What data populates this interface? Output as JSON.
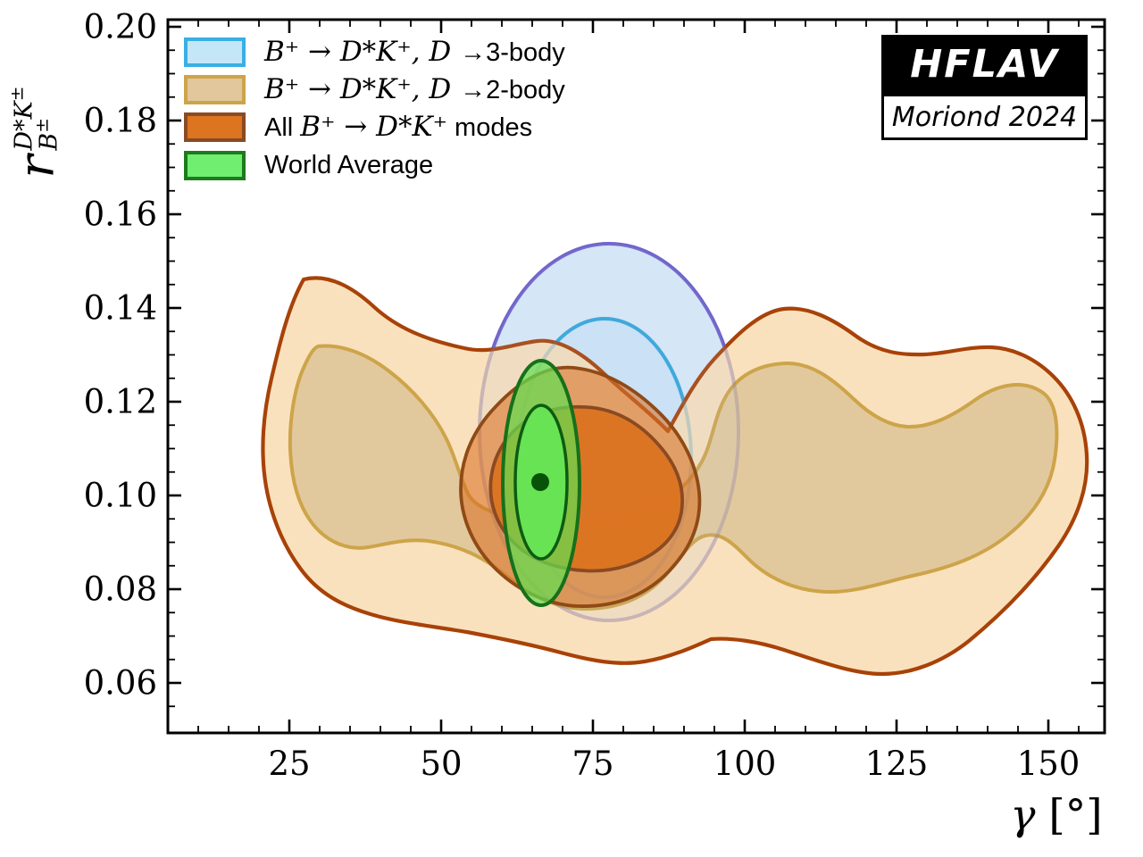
{
  "badge": {
    "line1": "HFLAV",
    "line2": "Moriond 2024",
    "bg": "#000000",
    "fg": "#ffffff"
  },
  "legend": {
    "items": [
      {
        "pre": "",
        "math": "B⁺ → D*K⁺, D ",
        "post": "→3-body",
        "fill": "#c5e6f7",
        "border": "#3aafe4"
      },
      {
        "pre": "",
        "math": "B⁺ → D*K⁺, D ",
        "post": "→2-body",
        "fill": "#e2c79c",
        "border": "#cda44a"
      },
      {
        "pre": "All ",
        "math": "B⁺ → D*K⁺",
        "post": " modes",
        "fill": "#dc7420",
        "border": "#8a4a22"
      },
      {
        "pre": "World Average",
        "math": "",
        "post": "",
        "fill": "#6fee6f",
        "border": "#1e7a1e"
      }
    ]
  },
  "axes": {
    "xlabel_gamma": "γ",
    "xlabel_unit": " [°]",
    "ylabel_base": "r",
    "ylabel_sup_main": "D*K",
    "ylabel_sup_pm": "±",
    "ylabel_sub_main": "B",
    "ylabel_sub_pm": "±"
  },
  "chart_data": {
    "type": "contour",
    "xlabel": "gamma [deg]",
    "ylabel": "r_B(D*K+-)",
    "xlim": [
      5,
      159.3
    ],
    "ylim": [
      0.0495,
      0.2015
    ],
    "grid": false,
    "legend_position": "top-left",
    "x_ticks": [
      25,
      50,
      75,
      100,
      125,
      150
    ],
    "x_tick_labels": [
      "25",
      "50",
      "75",
      "100",
      "125",
      "150"
    ],
    "x_minor_step": 5,
    "y_ticks": [
      0.06,
      0.08,
      0.1,
      0.12,
      0.14,
      0.16,
      0.18,
      0.2
    ],
    "y_tick_labels": [
      "0.06",
      "0.08",
      "0.10",
      "0.12",
      "0.14",
      "0.16",
      "0.18",
      "0.20"
    ],
    "y_minor_step": 0.005,
    "annotations": [
      "HFLAV",
      "Moriond 2024"
    ],
    "series": [
      {
        "name": "B+ -> D*K+, D -> 3-body",
        "line_1sigma": "#2fabe1",
        "line_2sigma": "#6a5fd8",
        "fill_1sigma": "#cbe2f5",
        "fill_2sigma": "#d9e9f8",
        "region_1sigma": {
          "gamma_range": [
            62,
            90
          ],
          "r_range": [
            0.079,
            0.137
          ],
          "shape": "tall ellipse, lower part hidden"
        },
        "region_2sigma": {
          "gamma_range": [
            52,
            100
          ],
          "r_range": [
            0.074,
            0.153
          ],
          "apex": {
            "gamma": 76,
            "r": 0.153
          }
        }
      },
      {
        "name": "B+ -> D*K+, D -> 2-body",
        "line_1sigma": "#cda44a",
        "line_2sigma": "#a84208",
        "fill_1sigma": "#e2c79c",
        "fill_2sigma": "#fae0bc",
        "region_1sigma": {
          "lobes": [
            {
              "gamma_range": [
                25,
                54
              ],
              "r_range": [
                0.088,
                0.132
              ]
            },
            {
              "gamma_range": [
                93,
                151
              ],
              "r_range": [
                0.079,
                0.13
              ]
            }
          ],
          "note": "two lobes joined by a narrow neck near r ~ 0.078"
        },
        "region_2sigma": {
          "gamma_range": [
            21,
            156
          ],
          "r_range": [
            0.062,
            0.146
          ]
        }
      },
      {
        "name": "All B+ -> D*K+ modes",
        "line": "#8a4a22",
        "fill_1sigma": "#dc7420",
        "fill_2sigma": "#dd9b59",
        "region_1sigma": {
          "gamma_range": [
            58,
            90
          ],
          "r_range": [
            0.084,
            0.119
          ]
        },
        "region_2sigma": {
          "gamma_range": [
            53,
            93
          ],
          "r_range": [
            0.076,
            0.127
          ]
        }
      },
      {
        "name": "World Average",
        "line": "#1e7a1e",
        "fill_1sigma": "#67e354",
        "fill_2sigma": "#79c96a",
        "best_fit": {
          "gamma_deg": 66.3,
          "r_B": 0.103
        },
        "region_1sigma": {
          "gamma_range": [
            62.0,
            70.6
          ],
          "r_range": [
            0.0866,
            0.1194
          ]
        },
        "region_2sigma": {
          "gamma_range": [
            60.0,
            72.6
          ],
          "r_range": [
            0.0768,
            0.129
          ]
        }
      }
    ]
  }
}
